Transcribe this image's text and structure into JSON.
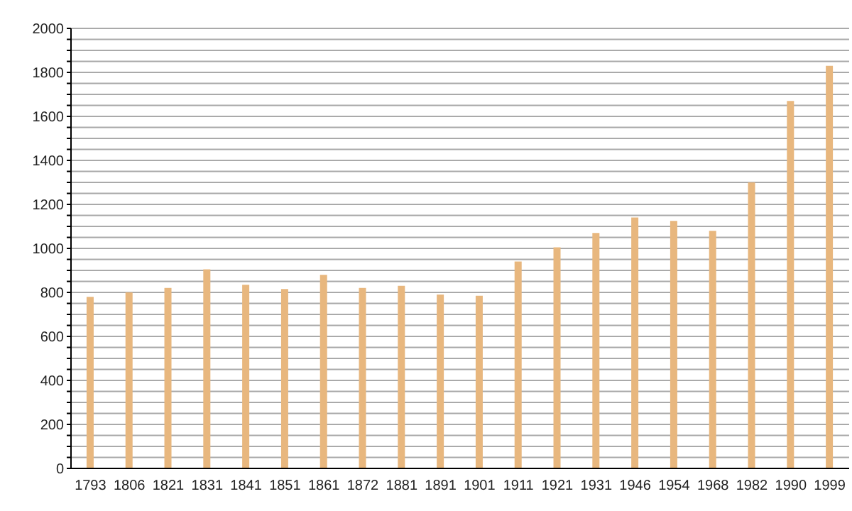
{
  "chart_data": {
    "type": "bar",
    "categories": [
      "1793",
      "1806",
      "1821",
      "1831",
      "1841",
      "1851",
      "1861",
      "1872",
      "1881",
      "1891",
      "1901",
      "1911",
      "1921",
      "1931",
      "1946",
      "1954",
      "1968",
      "1982",
      "1990",
      "1999"
    ],
    "values": [
      780,
      800,
      820,
      905,
      835,
      815,
      880,
      820,
      830,
      790,
      785,
      940,
      1005,
      1070,
      1140,
      1125,
      1080,
      1300,
      1670,
      1830
    ],
    "color": "#e8b77e",
    "ylim": [
      0,
      2000
    ],
    "yticks": [
      0,
      {
        "value": 50,
        "label": null
      },
      {
        "value": 100,
        "label": null
      },
      {
        "value": 150,
        "label": null
      },
      200,
      {
        "value": 250,
        "label": null
      },
      {
        "value": 300,
        "label": null
      },
      {
        "value": 350,
        "label": null
      },
      400,
      {
        "value": 450,
        "label": null
      },
      {
        "value": 500,
        "label": null
      },
      {
        "value": 550,
        "label": null
      },
      600,
      {
        "value": 650,
        "label": null
      },
      {
        "value": 700,
        "label": null
      },
      {
        "value": 750,
        "label": null
      },
      800,
      {
        "value": 850,
        "label": null
      },
      {
        "value": 900,
        "label": null
      },
      {
        "value": 950,
        "label": null
      },
      1000,
      {
        "value": 1050,
        "label": null
      },
      {
        "value": 1100,
        "label": null
      },
      {
        "value": 1150,
        "label": null
      },
      1200,
      {
        "value": 1250,
        "label": null
      },
      {
        "value": 1300,
        "label": null
      },
      {
        "value": 1350,
        "label": null
      },
      1400,
      {
        "value": 1450,
        "label": null
      },
      {
        "value": 1500,
        "label": null
      },
      {
        "value": 1550,
        "label": null
      },
      1600,
      {
        "value": 1650,
        "label": null
      },
      {
        "value": 1700,
        "label": null
      },
      {
        "value": 1750,
        "label": null
      },
      1800,
      {
        "value": 1850,
        "label": null
      },
      {
        "value": 1900,
        "label": null
      },
      {
        "value": 1950,
        "label": null
      },
      2000
    ],
    "grid": "y"
  }
}
